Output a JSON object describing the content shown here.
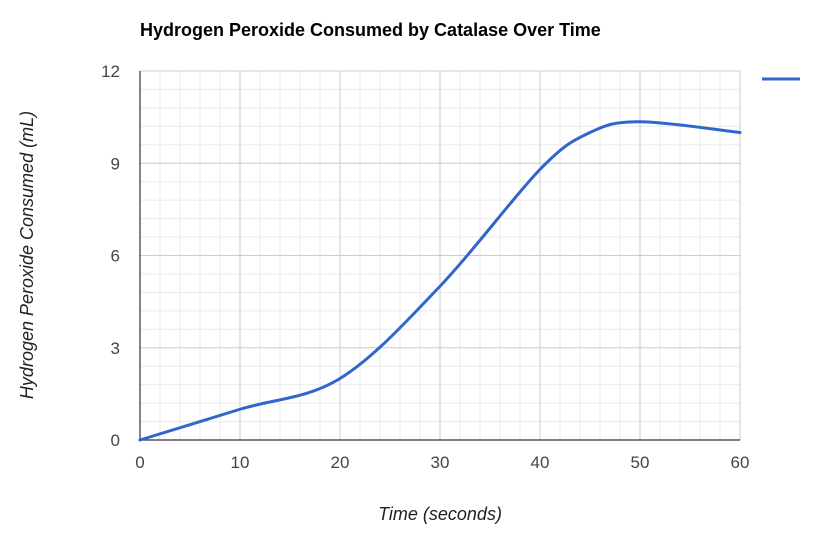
{
  "chart_data": {
    "type": "line",
    "title": "Hydrogen Peroxide Consumed by Catalase Over Time",
    "xlabel": "Time (seconds)",
    "ylabel": "Hydrogen Peroxide Consumed (mL)",
    "xlim": [
      0,
      60
    ],
    "ylim": [
      0,
      12
    ],
    "x_ticks": [
      "0",
      "10",
      "20",
      "30",
      "40",
      "50",
      "60"
    ],
    "y_ticks": [
      "0",
      "3",
      "6",
      "9",
      "12"
    ],
    "x": [
      0,
      10,
      20,
      30,
      40,
      45,
      50,
      60
    ],
    "series": [
      {
        "color": "#3366cc",
        "values": [
          0,
          1,
          2,
          5,
          8.8,
          10,
          10.35,
          10
        ]
      }
    ],
    "legend": "top-right",
    "grid": true,
    "colors": {
      "major_grid": "#cccccc",
      "minor_grid": "#ebebeb",
      "axis": "#333333"
    }
  }
}
